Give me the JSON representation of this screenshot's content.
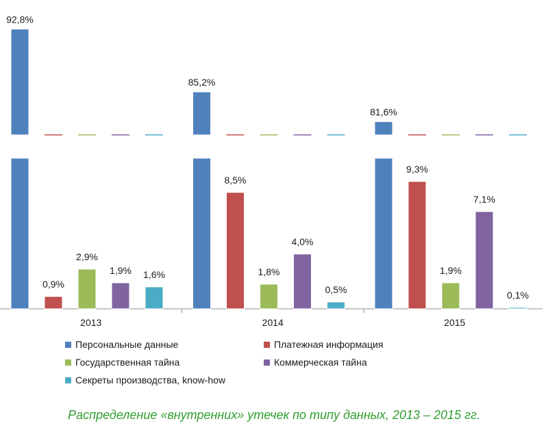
{
  "chart_data": {
    "type": "bar",
    "title": "Распределение «внутренних» утечек по типу данных, 2013 – 2015 гг.",
    "categories": [
      "2013",
      "2014",
      "2015"
    ],
    "series": [
      {
        "name": "Персональные данные",
        "color": "#4f81bd",
        "values": [
          92.8,
          85.2,
          81.6
        ],
        "labels": [
          "92,8%",
          "85,2%",
          "81,6%"
        ]
      },
      {
        "name": "Платежная информация",
        "color": "#c0504d",
        "values": [
          0.9,
          8.5,
          9.3
        ],
        "labels": [
          "0,9%",
          "8,5%",
          "9,3%"
        ]
      },
      {
        "name": "Государственная тайна",
        "color": "#9bbb59",
        "values": [
          2.9,
          1.8,
          1.9
        ],
        "labels": [
          "2,9%",
          "1,8%",
          "1,9%"
        ]
      },
      {
        "name": "Коммерческая тайна",
        "color": "#8064a2",
        "values": [
          1.9,
          4.0,
          7.1
        ],
        "labels": [
          "1,9%",
          "4,0%",
          "7,1%"
        ]
      },
      {
        "name": "Секреты производства, know-how",
        "color": "#4bacc6",
        "values": [
          1.6,
          0.5,
          0.1
        ],
        "labels": [
          "1,6%",
          "0,5%",
          "0,1%"
        ]
      }
    ],
    "upper_panel_ylim": [
      80,
      94
    ],
    "lower_panel_ylim": [
      0,
      11
    ],
    "axis_break": true,
    "legend_position": "bottom",
    "grid": false
  }
}
